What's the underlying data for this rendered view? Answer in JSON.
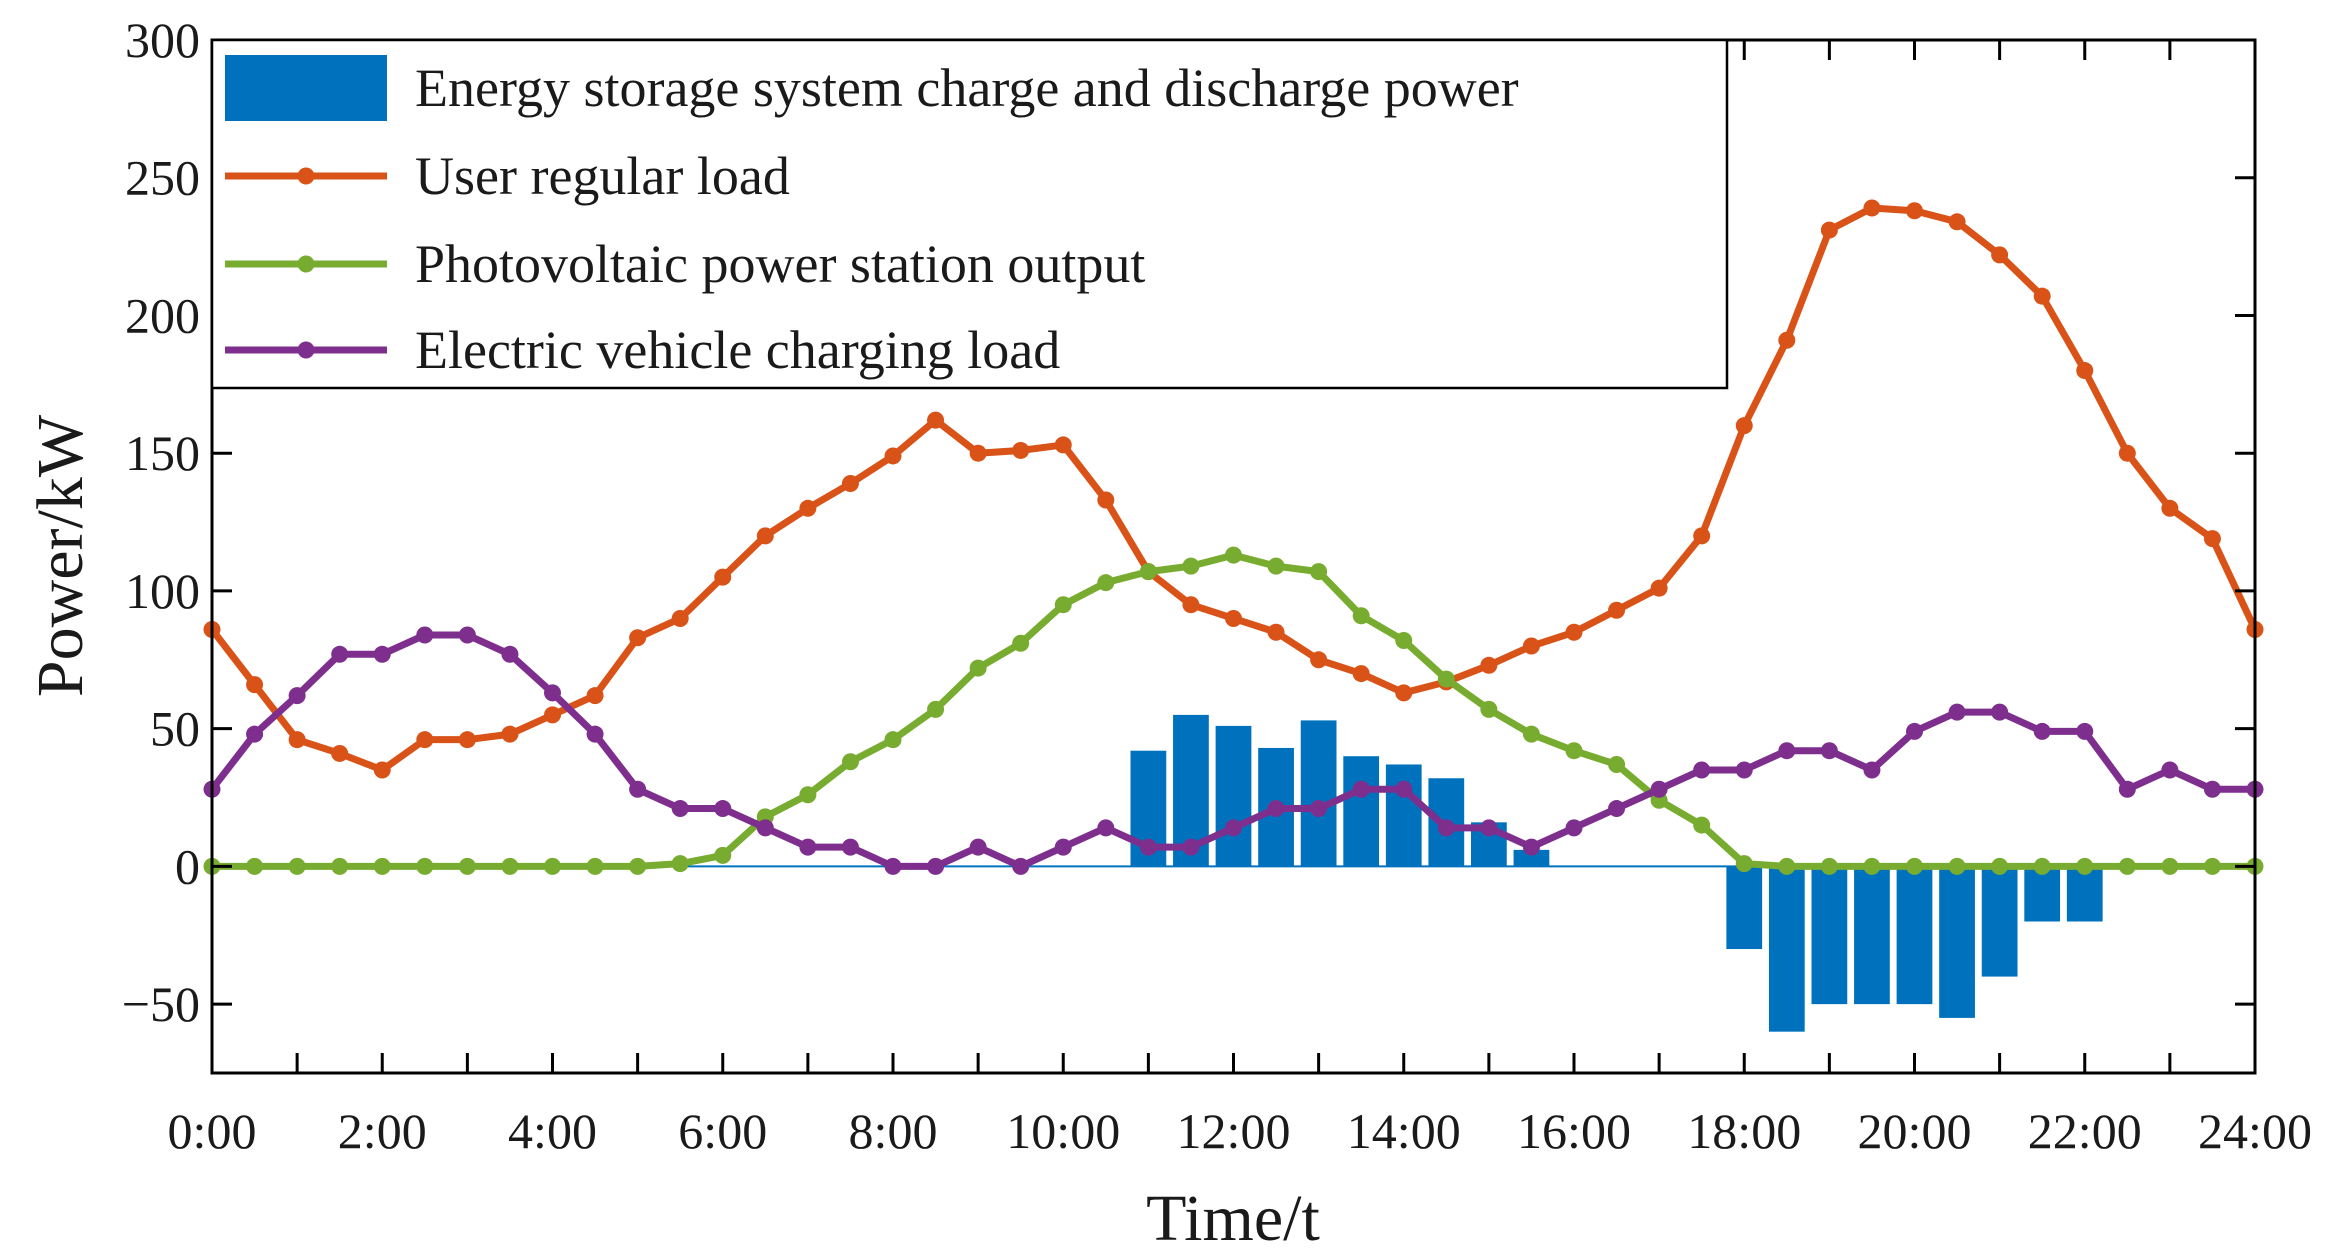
{
  "chart_data": {
    "type": "bar+line",
    "title": "",
    "xlabel": "Time/t",
    "ylabel": "Power/kW",
    "xlim": [
      0,
      24
    ],
    "ylim": [
      -75,
      300
    ],
    "x_ticks": [
      0,
      2,
      4,
      6,
      8,
      10,
      12,
      14,
      16,
      18,
      20,
      22,
      24
    ],
    "x_tick_labels": [
      "0:00",
      "2:00",
      "4:00",
      "6:00",
      "8:00",
      "10:00",
      "12:00",
      "14:00",
      "16:00",
      "18:00",
      "20:00",
      "22:00",
      "24:00"
    ],
    "y_ticks": [
      -50,
      0,
      50,
      100,
      150,
      200,
      250,
      300
    ],
    "y_tick_labels": [
      "−50",
      "0",
      "50",
      "100",
      "150",
      "200",
      "250",
      "300"
    ],
    "minor_x_ticks_hours": 1,
    "legend_position": "top-left",
    "x": [
      0,
      0.5,
      1,
      1.5,
      2,
      2.5,
      3,
      3.5,
      4,
      4.5,
      5,
      5.5,
      6,
      6.5,
      7,
      7.5,
      8,
      8.5,
      9,
      9.5,
      10,
      10.5,
      11,
      11.5,
      12,
      12.5,
      13,
      13.5,
      14,
      14.5,
      15,
      15.5,
      16,
      16.5,
      17,
      17.5,
      18,
      18.5,
      19,
      19.5,
      20,
      20.5,
      21,
      21.5,
      22,
      22.5,
      23,
      23.5,
      24
    ],
    "bar_series": {
      "name": "Energy storage system charge and discharge power",
      "color": "#0072BD",
      "x": [
        11,
        11.5,
        12,
        12.5,
        13,
        13.5,
        14,
        14.5,
        15,
        15.5,
        18,
        18.5,
        19,
        19.5,
        20,
        20.5,
        21,
        21.5,
        22
      ],
      "values": [
        42,
        55,
        51,
        43,
        53,
        40,
        37,
        32,
        16,
        6,
        -30,
        -60,
        -50,
        -50,
        -50,
        -55,
        -40,
        -20,
        -20
      ]
    },
    "line_series": [
      {
        "name": "User regular load",
        "color": "#D95319",
        "values": [
          86,
          66,
          46,
          41,
          35,
          46,
          46,
          48,
          55,
          62,
          83,
          90,
          105,
          120,
          130,
          139,
          149,
          162,
          150,
          151,
          153,
          133,
          107,
          95,
          90,
          85,
          75,
          70,
          63,
          67,
          73,
          80,
          85,
          93,
          101,
          120,
          160,
          191,
          231,
          239,
          238,
          234,
          222,
          207,
          180,
          150,
          130,
          119,
          86
        ]
      },
      {
        "name": "Photovoltaic power station output",
        "color": "#77AC30",
        "values": [
          0,
          0,
          0,
          0,
          0,
          0,
          0,
          0,
          0,
          0,
          0,
          1,
          4,
          18,
          26,
          38,
          46,
          57,
          72,
          81,
          95,
          103,
          107,
          109,
          113,
          109,
          107,
          91,
          82,
          68,
          57,
          48,
          42,
          37,
          24,
          15,
          1,
          0,
          0,
          0,
          0,
          0,
          0,
          0,
          0,
          0,
          0,
          0,
          0
        ]
      },
      {
        "name": "Electric vehicle charging load",
        "color": "#7E2F8E",
        "values": [
          28,
          48,
          62,
          77,
          77,
          84,
          84,
          77,
          63,
          48,
          28,
          21,
          21,
          14,
          7,
          7,
          0,
          0,
          7,
          0,
          7,
          14,
          7,
          7,
          14,
          21,
          21,
          28,
          28,
          14,
          14,
          7,
          14,
          21,
          28,
          35,
          35,
          42,
          42,
          35,
          49,
          56,
          56,
          49,
          49,
          28,
          35,
          28,
          28
        ]
      }
    ]
  }
}
